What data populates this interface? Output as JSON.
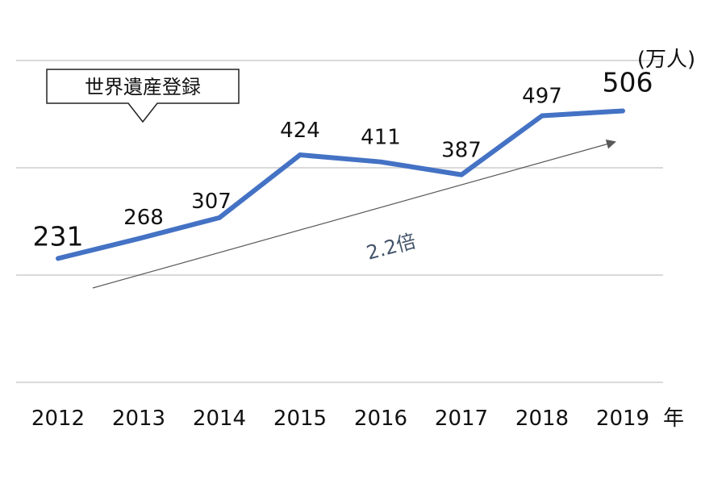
{
  "chart_data": {
    "type": "line",
    "categories": [
      "2012",
      "2013",
      "2014",
      "2015",
      "2016",
      "2017",
      "2018",
      "2019"
    ],
    "series": [
      {
        "values": [
          231,
          268,
          307,
          424,
          411,
          387,
          497,
          506
        ]
      }
    ],
    "title": "",
    "xlabel": "年",
    "ylabel": "(万人)",
    "ylim": [
      0,
      600
    ],
    "grid": true,
    "line_color": "#4472c4",
    "annotations": {
      "callout": "世界遺産登録",
      "callout_at": "2015",
      "trend_label": "2.2倍",
      "trend_color": "#595959"
    }
  }
}
